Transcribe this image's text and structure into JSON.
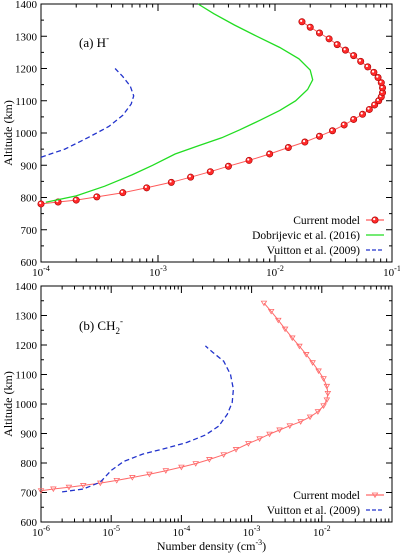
{
  "chart_data": [
    {
      "type": "line",
      "panel_label": "(a) H",
      "panel_label_sup": "-",
      "xlabel": "",
      "ylabel": "Altitude (km)",
      "xscale": "log",
      "xlim": [
        0.0001,
        0.1
      ],
      "ylim": [
        600,
        1400
      ],
      "x_tick_labels": [
        {
          "base": "10",
          "exp": "-4",
          "value": 0.0001
        },
        {
          "base": "10",
          "exp": "-3",
          "value": 0.001
        },
        {
          "base": "10",
          "exp": "-2",
          "value": 0.01
        },
        {
          "base": "10",
          "exp": "-1",
          "value": 0.1
        }
      ],
      "y_ticks": [
        600,
        700,
        800,
        900,
        1000,
        1100,
        1200,
        1300,
        1400
      ],
      "legend_position": "bottom-right",
      "series": [
        {
          "name": "Current model",
          "color": "#ff5a5a",
          "marker": "circle",
          "x": [
            0.0001,
            0.00014,
            0.0002,
            0.0003,
            0.0005,
            0.0008,
            0.0013,
            0.0019,
            0.0028,
            0.004,
            0.006,
            0.009,
            0.013,
            0.018,
            0.024,
            0.031,
            0.039,
            0.047,
            0.056,
            0.064,
            0.071,
            0.077,
            0.081,
            0.083,
            0.083,
            0.081,
            0.076,
            0.07,
            0.062,
            0.054,
            0.047,
            0.04,
            0.034,
            0.029,
            0.024,
            0.02,
            0.017
          ],
          "y": [
            780,
            786,
            792,
            802,
            815,
            830,
            847,
            863,
            880,
            897,
            915,
            935,
            955,
            972,
            990,
            1007,
            1025,
            1042,
            1058,
            1073,
            1087,
            1100,
            1112,
            1125,
            1140,
            1156,
            1172,
            1188,
            1205,
            1222,
            1240,
            1257,
            1274,
            1292,
            1310,
            1328,
            1345
          ]
        },
        {
          "name": "Dobrijevic et al. (2016)",
          "color": "#22dd22",
          "marker": "none",
          "x": [
            0.00011,
            0.0002,
            0.00035,
            0.0006,
            0.0009,
            0.0014,
            0.0022,
            0.0035,
            0.005,
            0.0075,
            0.011,
            0.015,
            0.019,
            0.021,
            0.02,
            0.016,
            0.011,
            0.007,
            0.0045,
            0.003,
            0.0022
          ],
          "y": [
            785,
            805,
            835,
            870,
            900,
            935,
            960,
            985,
            1010,
            1040,
            1070,
            1100,
            1135,
            1165,
            1195,
            1230,
            1265,
            1300,
            1335,
            1370,
            1400
          ]
        },
        {
          "name": "Vuitton et al. (2009)",
          "color": "#2233cc",
          "marker": "none",
          "x": [
            0.0001,
            0.00016,
            0.00025,
            0.00038,
            0.0005,
            0.00059,
            0.00062,
            0.00058,
            0.0005,
            0.00043
          ],
          "y": [
            925,
            950,
            985,
            1020,
            1055,
            1090,
            1115,
            1145,
            1175,
            1200
          ]
        }
      ]
    },
    {
      "type": "line",
      "panel_label": "(b) CH",
      "panel_label_sub": "2",
      "panel_label_sup": "-",
      "xlabel": "Number density (cm",
      "xlabel_sup": "-3",
      "xlabel_end": ")",
      "ylabel": "Altitude (km)",
      "xscale": "log",
      "xlim": [
        1e-06,
        0.1
      ],
      "ylim": [
        600,
        1400
      ],
      "x_tick_labels": [
        {
          "base": "10",
          "exp": "-6",
          "value": 1e-06
        },
        {
          "base": "10",
          "exp": "-5",
          "value": 1e-05
        },
        {
          "base": "10",
          "exp": "-4",
          "value": 0.0001
        },
        {
          "base": "10",
          "exp": "-3",
          "value": 0.001
        },
        {
          "base": "10",
          "exp": "-2",
          "value": 0.01
        }
      ],
      "y_ticks": [
        600,
        700,
        800,
        900,
        1000,
        1100,
        1200,
        1300,
        1400
      ],
      "legend_position": "bottom-right",
      "series": [
        {
          "name": "Current model",
          "color": "#ff6a6a",
          "marker": "triangle-down",
          "x": [
            1e-06,
            1.5e-06,
            2.5e-06,
            4e-06,
            7e-06,
            1.2e-05,
            2e-05,
            3.5e-05,
            6e-05,
            0.0001,
            0.00016,
            0.00025,
            0.0004,
            0.0006,
            0.0009,
            0.0013,
            0.0018,
            0.0025,
            0.0035,
            0.005,
            0.0068,
            0.0088,
            0.0106,
            0.0118,
            0.0122,
            0.0118,
            0.0106,
            0.009,
            0.0074,
            0.006,
            0.0048,
            0.0038,
            0.003,
            0.0024,
            0.0019,
            0.0015
          ],
          "y": [
            706,
            712,
            718,
            724,
            732,
            741,
            751,
            762,
            774,
            786,
            798,
            812,
            828,
            846,
            866,
            882,
            898,
            912,
            926,
            940,
            956,
            974,
            994,
            1014,
            1036,
            1060,
            1086,
            1112,
            1140,
            1168,
            1196,
            1224,
            1254,
            1284,
            1314,
            1342
          ]
        },
        {
          "name": "Vuitton et al. (2009)",
          "color": "#2233cc",
          "marker": "none",
          "x": [
            2e-06,
            4e-06,
            7e-06,
            1e-05,
            1.5e-05,
            2.8e-05,
            6e-05,
            0.00012,
            0.00022,
            0.00034,
            0.00045,
            0.00053,
            0.00055,
            0.0005,
            0.0004,
            0.00028,
            0.00022
          ],
          "y": [
            702,
            712,
            735,
            775,
            805,
            830,
            850,
            870,
            895,
            925,
            965,
            1005,
            1050,
            1100,
            1145,
            1175,
            1197
          ]
        }
      ]
    }
  ]
}
